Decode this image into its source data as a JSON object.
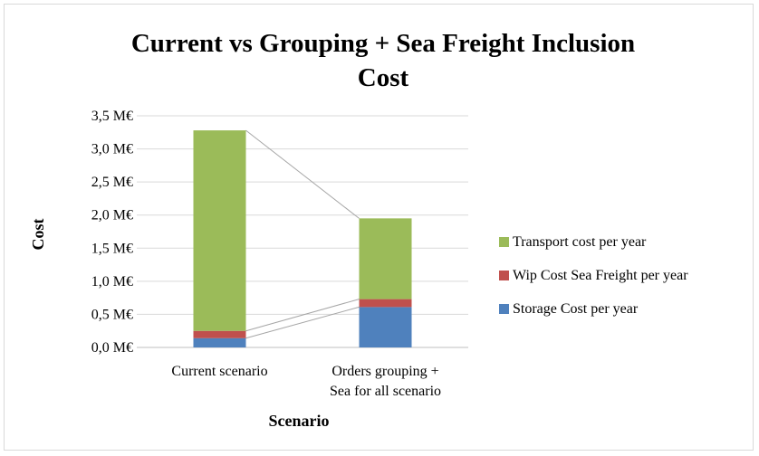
{
  "chart_data": {
    "type": "bar",
    "stacked": true,
    "title_lines": [
      "Current vs  Grouping + Sea Freight Inclusion",
      "Cost"
    ],
    "xlabel": "Scenario",
    "ylabel": "Cost",
    "categories": [
      [
        "Current scenario"
      ],
      [
        "Orders grouping +",
        "Sea for all scenario"
      ]
    ],
    "ylim": [
      0,
      3.5
    ],
    "y_ticks": [
      {
        "value": 0.0,
        "label": "0,0 M€"
      },
      {
        "value": 0.5,
        "label": "0,5 M€"
      },
      {
        "value": 1.0,
        "label": "1,0 M€"
      },
      {
        "value": 1.5,
        "label": "1,5 M€"
      },
      {
        "value": 2.0,
        "label": "2,0 M€"
      },
      {
        "value": 2.5,
        "label": "2,5 M€"
      },
      {
        "value": 3.0,
        "label": "3,0 M€"
      },
      {
        "value": 3.5,
        "label": "3,5 M€"
      }
    ],
    "series": [
      {
        "name": "Storage Cost per year",
        "color": "#4f81bd",
        "values": [
          0.14,
          0.61
        ]
      },
      {
        "name": "Wip Cost Sea Freight per year",
        "color": "#c0504d",
        "values": [
          0.11,
          0.12
        ]
      },
      {
        "name": "Transport cost per year",
        "color": "#9bbb59",
        "values": [
          3.03,
          1.22
        ]
      }
    ],
    "series_lines": true,
    "grid": true,
    "legend": "right",
    "legend_order": [
      2,
      1,
      0
    ]
  }
}
